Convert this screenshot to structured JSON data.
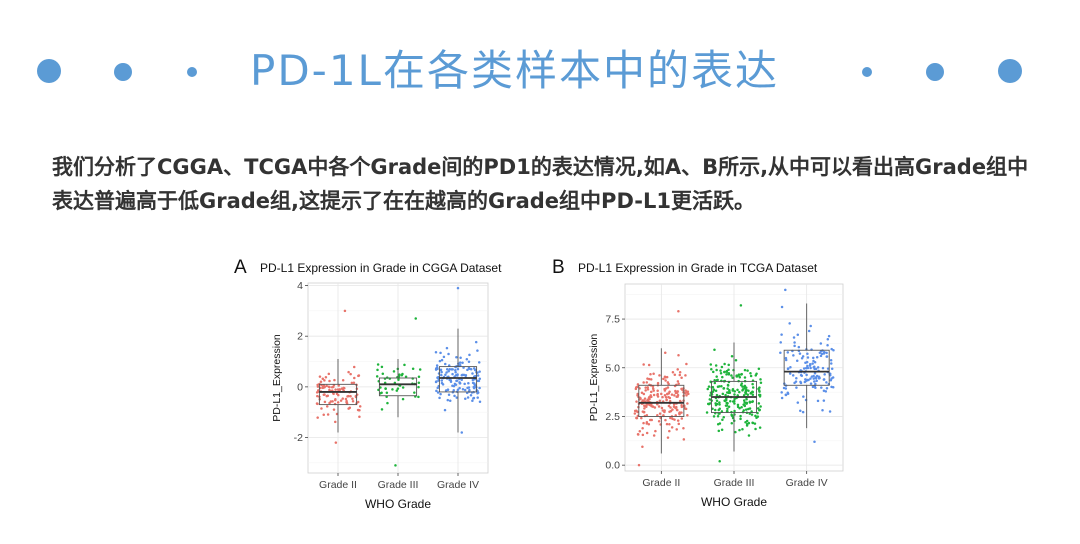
{
  "header": {
    "title": "PD-1L在各类样本中的表达"
  },
  "intro": {
    "text": "我们分析了CGGA、TCGA中各个Grade间的PD1的表达情况,如A、B所示,从中可以看出高Grade组中表达普遍高于低Grade组,这提示了在在越高的Grade组中PD-L1更活跃。"
  },
  "colors": {
    "accent": "#5b9bd5",
    "grade_ii": "#e8736a",
    "grade_iii": "#1fb43c",
    "grade_iv": "#5b8fe8"
  },
  "chart_data": [
    {
      "panel": "A",
      "type": "box",
      "title": "PD-L1 Expression in Grade in CGGA Dataset",
      "xlabel": "WHO Grade",
      "ylabel": "PD-L1_Expression",
      "categories": [
        "Grade II",
        "Grade III",
        "Grade IV"
      ],
      "yticks": [
        -2,
        0,
        2,
        4
      ],
      "ylim": [
        -3.4,
        4.1
      ],
      "grid": true,
      "boxes": [
        {
          "name": "Grade II",
          "whisker_low": -1.8,
          "q1": -0.7,
          "median": -0.2,
          "q3": 0.1,
          "whisker_high": 1.1,
          "n_points": 110,
          "max_outlier": 3.0,
          "min_outlier": -2.2
        },
        {
          "name": "Grade III",
          "whisker_low": -1.2,
          "q1": -0.35,
          "median": 0.1,
          "q3": 0.35,
          "whisker_high": 1.1,
          "n_points": 50,
          "max_outlier": 2.7,
          "min_outlier": -3.1
        },
        {
          "name": "Grade IV",
          "whisker_low": -1.8,
          "q1": -0.2,
          "median": 0.35,
          "q3": 0.8,
          "whisker_high": 2.3,
          "n_points": 160,
          "max_outlier": 3.9,
          "min_outlier": -1.8
        }
      ]
    },
    {
      "panel": "B",
      "type": "box",
      "title": "PD-L1 Expression in Grade in TCGA Dataset",
      "xlabel": "WHO Grade",
      "ylabel": "PD-L1_Expression",
      "categories": [
        "Grade II",
        "Grade III",
        "Grade IV"
      ],
      "yticks": [
        0.0,
        2.5,
        5.0,
        7.5
      ],
      "ytick_labels": [
        "0.0",
        "2.5",
        "5.0",
        "7.5"
      ],
      "ylim": [
        -0.3,
        9.3
      ],
      "grid": true,
      "boxes": [
        {
          "name": "Grade II",
          "whisker_low": 0.6,
          "q1": 2.5,
          "median": 3.2,
          "q3": 4.1,
          "whisker_high": 6.0,
          "n_points": 230,
          "max_outlier": 7.9,
          "min_outlier": 0.0
        },
        {
          "name": "Grade III",
          "whisker_low": 0.7,
          "q1": 2.7,
          "median": 3.5,
          "q3": 4.3,
          "whisker_high": 6.3,
          "n_points": 240,
          "max_outlier": 8.2,
          "min_outlier": 0.2
        },
        {
          "name": "Grade IV",
          "whisker_low": 1.9,
          "q1": 4.1,
          "median": 4.8,
          "q3": 5.9,
          "whisker_high": 8.3,
          "n_points": 150,
          "max_outlier": 9.0,
          "min_outlier": 1.2
        }
      ]
    }
  ]
}
